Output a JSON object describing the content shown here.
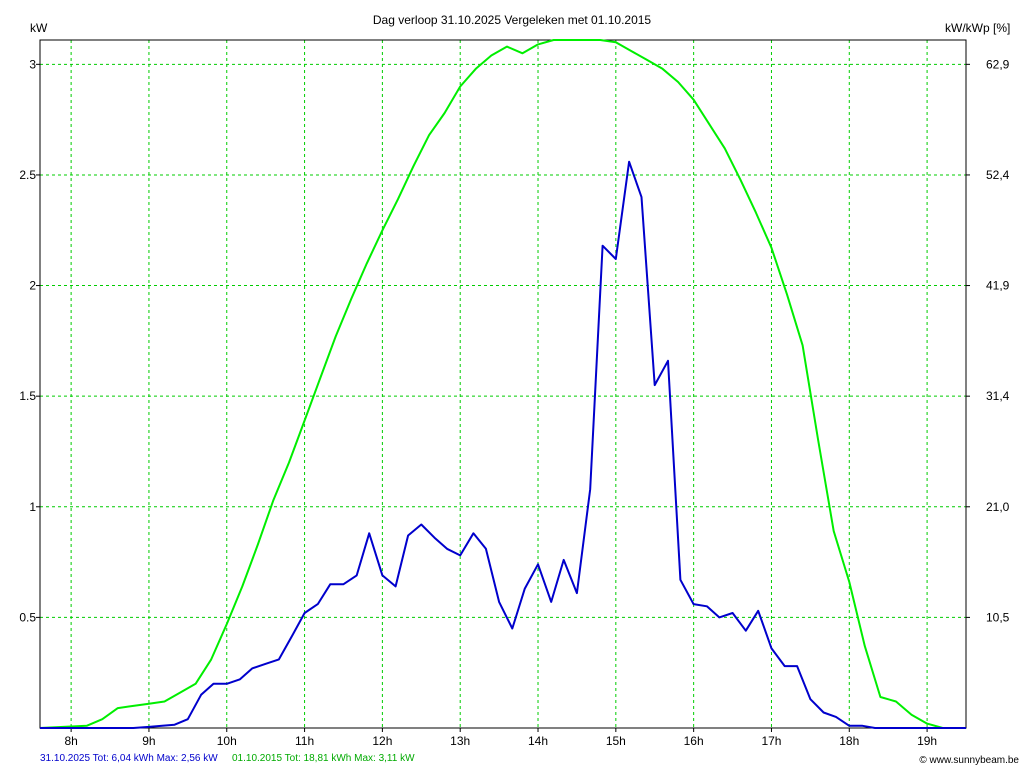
{
  "title": "Dag  verloop 31.10.2025   Vergeleken met 01.10.2015",
  "left_unit": "kW",
  "right_unit": "kW/kWp [%]",
  "footer": {
    "today_info": "31.10.2025 Tot: 6,04 kWh Max: 2,56 kW",
    "ref_info": "01.10.2015 Tot: 18,81 kWh Max: 3,11 kW",
    "website": "© www.sunnybeam.be"
  },
  "colors": {
    "grid": "#00cc00",
    "today_series": "#0000cc",
    "reference_series": "#00ee00",
    "axis": "#000000",
    "background": "#ffffff"
  },
  "chart_data": {
    "type": "line",
    "title": "Dag  verloop 31.10.2025   Vergeleken met 01.10.2015",
    "xlabel": "",
    "ylabel": "kW",
    "y2label": "kW/kWp [%]",
    "xlim": [
      7.6,
      19.5
    ],
    "ylim": [
      0,
      3.11
    ],
    "x_ticks": [
      8,
      9,
      10,
      11,
      12,
      13,
      14,
      15,
      16,
      17,
      18,
      19
    ],
    "x_tick_labels": [
      "8h",
      "9h",
      "10h",
      "11h",
      "12h",
      "13h",
      "14h",
      "15h",
      "16h",
      "17h",
      "18h",
      "19h"
    ],
    "y_ticks": [
      0.5,
      1,
      1.5,
      2,
      2.5,
      3
    ],
    "y_tick_labels": [
      "0.5",
      "1",
      "1.5",
      "2",
      "2.5",
      "3"
    ],
    "y2_tick_labels": [
      "10,5",
      "21,0",
      "31,4",
      "41,9",
      "52,4",
      "62,9"
    ],
    "grid": true,
    "series": [
      {
        "name": "31.10.2025",
        "color": "#0000cc",
        "x": [
          7.6,
          8.8,
          9.0,
          9.17,
          9.33,
          9.5,
          9.67,
          9.83,
          10.0,
          10.17,
          10.33,
          10.5,
          10.67,
          10.83,
          11.0,
          11.17,
          11.33,
          11.5,
          11.67,
          11.83,
          12.0,
          12.17,
          12.33,
          12.5,
          12.67,
          12.83,
          13.0,
          13.17,
          13.33,
          13.5,
          13.67,
          13.83,
          14.0,
          14.17,
          14.33,
          14.5,
          14.67,
          14.83,
          15.0,
          15.17,
          15.33,
          15.5,
          15.67,
          15.83,
          16.0,
          16.17,
          16.33,
          16.5,
          16.67,
          16.83,
          17.0,
          17.17,
          17.33,
          17.5,
          17.67,
          17.83,
          18.0,
          18.17,
          18.33,
          19.5
        ],
        "y": [
          0,
          0,
          0.005,
          0.01,
          0.015,
          0.04,
          0.15,
          0.2,
          0.2,
          0.22,
          0.27,
          0.29,
          0.31,
          0.41,
          0.52,
          0.56,
          0.65,
          0.65,
          0.69,
          0.88,
          0.69,
          0.64,
          0.87,
          0.92,
          0.86,
          0.81,
          0.78,
          0.88,
          0.81,
          0.57,
          0.45,
          0.63,
          0.74,
          0.57,
          0.76,
          0.61,
          1.08,
          2.18,
          2.12,
          2.56,
          2.4,
          1.55,
          1.66,
          0.67,
          0.56,
          0.55,
          0.5,
          0.52,
          0.44,
          0.53,
          0.36,
          0.28,
          0.28,
          0.13,
          0.07,
          0.05,
          0.01,
          0.01,
          0.0,
          0.0
        ]
      },
      {
        "name": "01.10.2015",
        "color": "#00ee00",
        "x": [
          7.6,
          8.2,
          8.4,
          8.6,
          8.8,
          9.0,
          9.2,
          9.4,
          9.6,
          9.8,
          10.0,
          10.2,
          10.4,
          10.6,
          10.8,
          11.0,
          11.2,
          11.4,
          11.6,
          11.8,
          12.0,
          12.2,
          12.4,
          12.6,
          12.8,
          13.0,
          13.2,
          13.4,
          13.6,
          13.8,
          14.0,
          14.2,
          14.4,
          14.6,
          14.8,
          15.0,
          15.2,
          15.4,
          15.6,
          15.8,
          16.0,
          16.2,
          16.4,
          16.6,
          16.8,
          17.0,
          17.2,
          17.4,
          17.6,
          17.8,
          18.0,
          18.2,
          18.4,
          18.6,
          18.8,
          19.0,
          19.2,
          19.5
        ],
        "y": [
          0,
          0.01,
          0.04,
          0.09,
          0.1,
          0.11,
          0.12,
          0.16,
          0.2,
          0.31,
          0.47,
          0.64,
          0.83,
          1.03,
          1.2,
          1.39,
          1.58,
          1.77,
          1.94,
          2.1,
          2.25,
          2.39,
          2.54,
          2.68,
          2.78,
          2.9,
          2.98,
          3.04,
          3.08,
          3.05,
          3.09,
          3.11,
          3.11,
          3.11,
          3.11,
          3.1,
          3.06,
          3.02,
          2.98,
          2.92,
          2.84,
          2.73,
          2.62,
          2.48,
          2.33,
          2.17,
          1.96,
          1.73,
          1.3,
          0.89,
          0.66,
          0.37,
          0.14,
          0.12,
          0.06,
          0.02,
          0.0,
          0.0
        ]
      }
    ]
  }
}
